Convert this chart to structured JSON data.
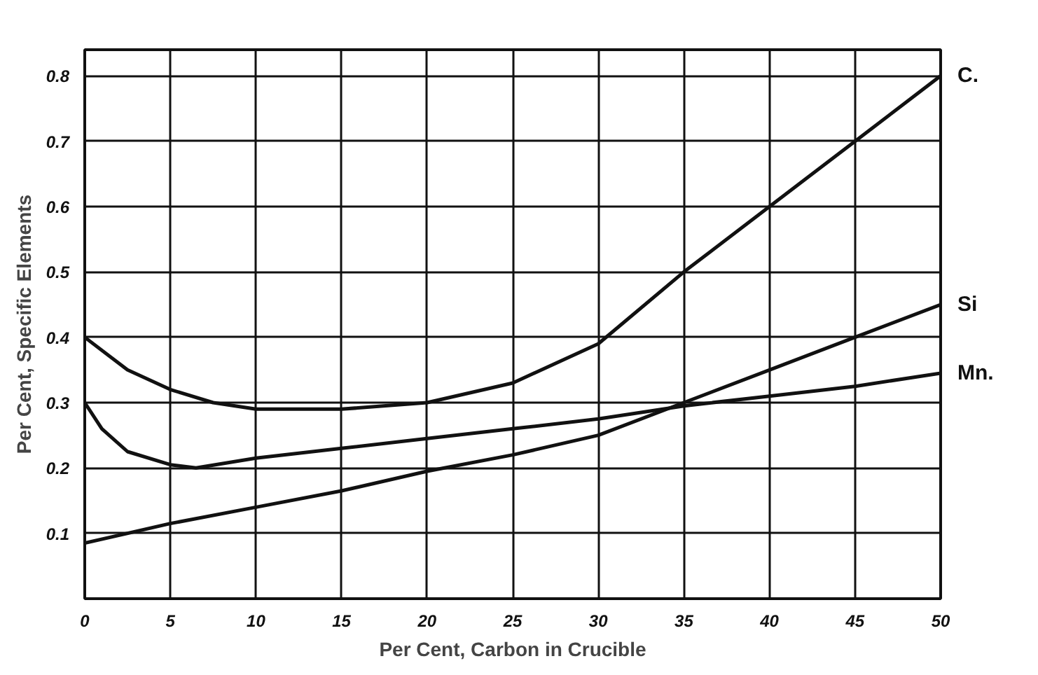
{
  "chart_data": {
    "type": "line",
    "xlabel": "Per Cent, Carbon in Crucible",
    "ylabel": "Per Cent, Specific Elements",
    "xlim": [
      0,
      50
    ],
    "ylim": [
      0,
      0.84
    ],
    "xticks": [
      0,
      5,
      10,
      15,
      20,
      25,
      30,
      35,
      40,
      45,
      50
    ],
    "yticks": [
      {
        "value": 0,
        "label": null
      },
      0.1,
      0.2,
      0.3,
      0.4,
      0.5,
      0.6,
      0.7,
      0.8
    ],
    "grid": true,
    "marker": "none",
    "line_style": "solid",
    "series": [
      {
        "name": "C.",
        "color": "#111111",
        "x": [
          0,
          2.5,
          5,
          7.5,
          10,
          15,
          20,
          25,
          30,
          35,
          40,
          45,
          50
        ],
        "values": [
          0.4,
          0.35,
          0.32,
          0.3,
          0.29,
          0.29,
          0.3,
          0.33,
          0.39,
          0.5,
          0.6,
          0.7,
          0.8
        ]
      },
      {
        "name": "Si",
        "color": "#111111",
        "x": [
          0,
          5,
          10,
          15,
          20,
          25,
          30,
          35,
          40,
          45,
          50
        ],
        "values": [
          0.085,
          0.115,
          0.14,
          0.165,
          0.195,
          0.22,
          0.25,
          0.3,
          0.35,
          0.4,
          0.45
        ]
      },
      {
        "name": "Mn.",
        "color": "#111111",
        "x": [
          0,
          1,
          2.5,
          5,
          6.5,
          10,
          15,
          20,
          25,
          30,
          35,
          40,
          45,
          50
        ],
        "values": [
          0.3,
          0.26,
          0.225,
          0.205,
          0.2,
          0.215,
          0.23,
          0.245,
          0.26,
          0.275,
          0.295,
          0.31,
          0.325,
          0.345
        ]
      }
    ]
  }
}
